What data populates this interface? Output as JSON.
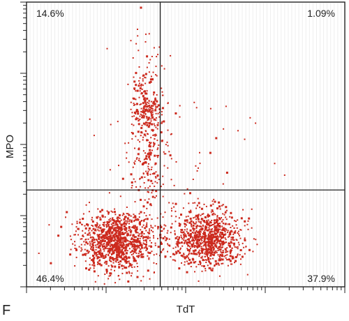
{
  "chart_data": {
    "type": "scatter",
    "xlabel": "TdT",
    "ylabel": "MPO",
    "panel_label": "F",
    "xlim": [
      0,
      1
    ],
    "ylim": [
      0,
      1
    ],
    "gate": {
      "x": 0.42,
      "y": 0.34
    },
    "quadrants": {
      "upper_left": "14.6%",
      "upper_right": "1.09%",
      "lower_left": "46.4%",
      "lower_right": "37.9%"
    },
    "point_color": "#cc2a1e",
    "clusters": [
      {
        "name": "lower-left population",
        "cx": 0.28,
        "cy": 0.16,
        "sx": 0.06,
        "sy": 0.05,
        "n": 1150
      },
      {
        "name": "lower-right population",
        "cx": 0.57,
        "cy": 0.17,
        "sx": 0.055,
        "sy": 0.05,
        "n": 950
      },
      {
        "name": "upper stalk",
        "cx": 0.38,
        "cy": 0.55,
        "sx": 0.028,
        "sy": 0.15,
        "n": 340
      },
      {
        "name": "upper dense spot",
        "cx": 0.385,
        "cy": 0.62,
        "sx": 0.018,
        "sy": 0.025,
        "n": 90
      },
      {
        "name": "sparse scatter",
        "cx": 0.42,
        "cy": 0.45,
        "sx": 0.14,
        "sy": 0.16,
        "n": 70
      }
    ]
  }
}
